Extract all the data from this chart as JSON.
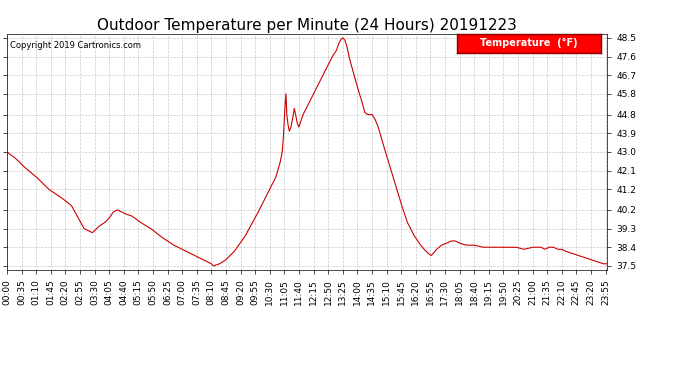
{
  "title": "Outdoor Temperature per Minute (24 Hours) 20191223",
  "copyright": "Copyright 2019 Cartronics.com",
  "legend_label": "Temperature  (°F)",
  "yticks": [
    37.5,
    38.4,
    39.3,
    40.2,
    41.2,
    42.1,
    43.0,
    43.9,
    44.8,
    45.8,
    46.7,
    47.6,
    48.5
  ],
  "ylim": [
    37.3,
    48.7
  ],
  "line_color": "#cc0000",
  "background_color": "#ffffff",
  "grid_color": "#bbbbbb",
  "title_fontsize": 11,
  "tick_fontsize": 6.5,
  "x_tick_interval_minutes": 35,
  "total_minutes": 1440,
  "control_points": [
    [
      0,
      43.0
    ],
    [
      20,
      42.7
    ],
    [
      40,
      42.3
    ],
    [
      70,
      41.8
    ],
    [
      100,
      41.2
    ],
    [
      130,
      40.8
    ],
    [
      155,
      40.4
    ],
    [
      185,
      39.3
    ],
    [
      205,
      39.1
    ],
    [
      220,
      39.4
    ],
    [
      235,
      39.6
    ],
    [
      245,
      39.8
    ],
    [
      255,
      40.1
    ],
    [
      265,
      40.2
    ],
    [
      275,
      40.1
    ],
    [
      285,
      40.0
    ],
    [
      300,
      39.9
    ],
    [
      320,
      39.6
    ],
    [
      345,
      39.3
    ],
    [
      370,
      38.9
    ],
    [
      400,
      38.5
    ],
    [
      430,
      38.2
    ],
    [
      460,
      37.9
    ],
    [
      480,
      37.7
    ],
    [
      490,
      37.6
    ],
    [
      495,
      37.5
    ],
    [
      510,
      37.6
    ],
    [
      525,
      37.8
    ],
    [
      545,
      38.2
    ],
    [
      570,
      38.9
    ],
    [
      600,
      40.0
    ],
    [
      630,
      41.2
    ],
    [
      645,
      41.8
    ],
    [
      655,
      42.5
    ],
    [
      660,
      43.0
    ],
    [
      663,
      43.8
    ],
    [
      665,
      44.6
    ],
    [
      667,
      45.3
    ],
    [
      669,
      45.8
    ],
    [
      671,
      44.8
    ],
    [
      674,
      44.3
    ],
    [
      677,
      44.0
    ],
    [
      681,
      44.2
    ],
    [
      685,
      44.6
    ],
    [
      689,
      45.1
    ],
    [
      692,
      44.8
    ],
    [
      696,
      44.4
    ],
    [
      700,
      44.2
    ],
    [
      705,
      44.5
    ],
    [
      710,
      44.8
    ],
    [
      720,
      45.2
    ],
    [
      730,
      45.6
    ],
    [
      740,
      46.0
    ],
    [
      750,
      46.4
    ],
    [
      760,
      46.8
    ],
    [
      770,
      47.2
    ],
    [
      780,
      47.6
    ],
    [
      790,
      47.9
    ],
    [
      795,
      48.2
    ],
    [
      800,
      48.4
    ],
    [
      805,
      48.5
    ],
    [
      810,
      48.4
    ],
    [
      815,
      48.1
    ],
    [
      820,
      47.6
    ],
    [
      828,
      47.0
    ],
    [
      835,
      46.5
    ],
    [
      842,
      46.0
    ],
    [
      850,
      45.5
    ],
    [
      858,
      44.9
    ],
    [
      865,
      44.8
    ],
    [
      875,
      44.8
    ],
    [
      882,
      44.6
    ],
    [
      890,
      44.2
    ],
    [
      900,
      43.5
    ],
    [
      915,
      42.5
    ],
    [
      930,
      41.5
    ],
    [
      945,
      40.5
    ],
    [
      960,
      39.6
    ],
    [
      975,
      39.0
    ],
    [
      988,
      38.6
    ],
    [
      1000,
      38.3
    ],
    [
      1010,
      38.1
    ],
    [
      1017,
      38.0
    ],
    [
      1022,
      38.1
    ],
    [
      1030,
      38.3
    ],
    [
      1042,
      38.5
    ],
    [
      1055,
      38.6
    ],
    [
      1065,
      38.7
    ],
    [
      1075,
      38.7
    ],
    [
      1085,
      38.6
    ],
    [
      1100,
      38.5
    ],
    [
      1120,
      38.5
    ],
    [
      1140,
      38.4
    ],
    [
      1160,
      38.4
    ],
    [
      1180,
      38.4
    ],
    [
      1200,
      38.4
    ],
    [
      1220,
      38.4
    ],
    [
      1240,
      38.3
    ],
    [
      1260,
      38.4
    ],
    [
      1270,
      38.4
    ],
    [
      1280,
      38.4
    ],
    [
      1290,
      38.3
    ],
    [
      1300,
      38.4
    ],
    [
      1310,
      38.4
    ],
    [
      1320,
      38.3
    ],
    [
      1330,
      38.3
    ],
    [
      1340,
      38.2
    ],
    [
      1355,
      38.1
    ],
    [
      1370,
      38.0
    ],
    [
      1385,
      37.9
    ],
    [
      1400,
      37.8
    ],
    [
      1415,
      37.7
    ],
    [
      1430,
      37.6
    ],
    [
      1439,
      37.6
    ]
  ]
}
